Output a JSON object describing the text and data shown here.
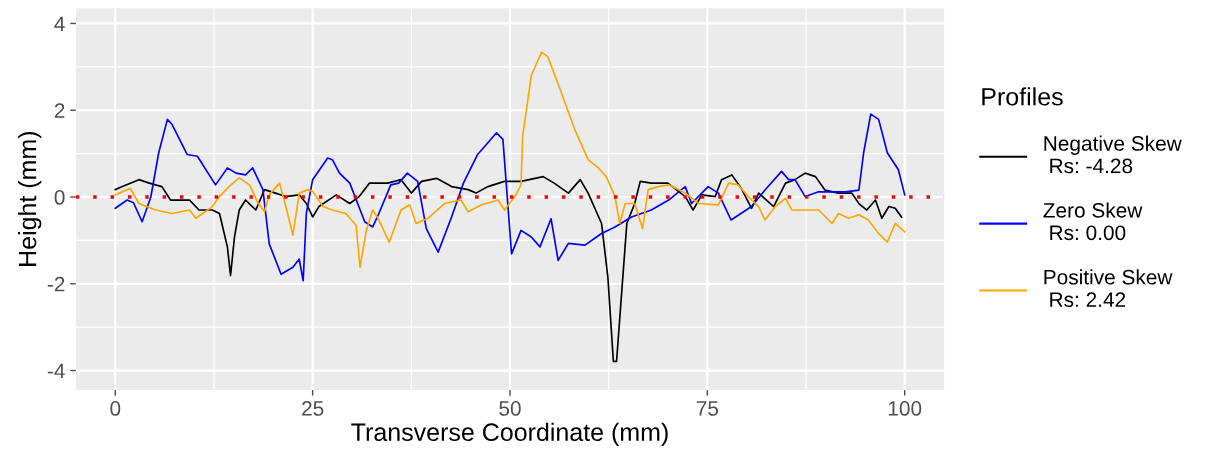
{
  "chart_data": {
    "type": "line",
    "xlabel": "Transverse Coordinate (mm)",
    "ylabel": "Height (mm)",
    "legend_title": "Profiles",
    "legend": "right",
    "grid": true,
    "xlim": [
      -5,
      105
    ],
    "xticks": [
      0,
      25,
      50,
      75,
      100
    ],
    "ylim": [
      -4.45,
      4.35
    ],
    "yticks": [
      -4,
      -2,
      0,
      2,
      4
    ],
    "ref_lines": [
      {
        "axis": "y",
        "value": 0,
        "color": "#ff0000",
        "line_style": "dotted"
      }
    ],
    "series": [
      {
        "name": "Negative Skew\n Rs: -4.28",
        "color": "#000000",
        "x": [
          0,
          0.9,
          3,
          4.3,
          5.9,
          7,
          9.4,
          10.6,
          12.3,
          13.2,
          14.2,
          14.6,
          15.1,
          15.7,
          16.5,
          17.8,
          18.9,
          20.3,
          21.6,
          23.3,
          24.2,
          25,
          25.8,
          28,
          29.7,
          30.9,
          32.2,
          34.5,
          36.2,
          37.5,
          38.8,
          40.7,
          42.6,
          44.7,
          45.7,
          47.2,
          49.3,
          51.4,
          54.2,
          55.6,
          57.4,
          58.9,
          59.9,
          61.6,
          62.4,
          63.1,
          63.5,
          64.1,
          64.8,
          65.8,
          66.5,
          67.9,
          70,
          72.2,
          73.2,
          74.3,
          76,
          76.8,
          78.1,
          79.3,
          80.6,
          81.5,
          83.4,
          84.9,
          86.1,
          87.4,
          88.7,
          89.9,
          91.6,
          93.3,
          94.2,
          95.2,
          96.3,
          97.1,
          98,
          98.8,
          99.6
        ],
        "values": [
          0.17,
          0.24,
          0.4,
          0.32,
          0.24,
          -0.07,
          -0.07,
          -0.3,
          -0.3,
          -0.38,
          -1.15,
          -1.81,
          -0.92,
          -0.3,
          -0.07,
          -0.3,
          0.17,
          0.09,
          0.01,
          0.05,
          -0.15,
          -0.46,
          -0.22,
          0.05,
          -0.15,
          0.01,
          0.32,
          0.32,
          0.4,
          0.09,
          0.36,
          0.43,
          0.24,
          0.17,
          0.09,
          0.24,
          0.36,
          0.36,
          0.47,
          0.32,
          0.09,
          0.4,
          0.09,
          -0.61,
          -1.85,
          -3.79,
          -3.79,
          -2.32,
          -0.61,
          -0.15,
          0.36,
          0.32,
          0.32,
          0.01,
          -0.3,
          0.05,
          0.01,
          0.4,
          0.51,
          0.2,
          -0.26,
          0.09,
          -0.22,
          0.32,
          0.4,
          0.55,
          0.47,
          0.16,
          0.09,
          0.09,
          -0.15,
          -0.3,
          -0.07,
          -0.49,
          -0.22,
          -0.26,
          -0.46
        ]
      },
      {
        "name": "Zero Skew\n Rs: 0.00",
        "color": "#0000ff",
        "x": [
          0,
          1.5,
          2.3,
          3.4,
          4.5,
          5.5,
          6.6,
          7.2,
          9.1,
          10.4,
          12.7,
          14.2,
          15.3,
          16.5,
          17.4,
          18.7,
          19.5,
          21,
          22.5,
          23.3,
          23.8,
          24.2,
          25,
          26.9,
          27.5,
          28.4,
          29.7,
          31.6,
          32.6,
          33.2,
          34.9,
          35.9,
          37,
          38.3,
          39.4,
          40.9,
          42.6,
          44.1,
          45.9,
          48.3,
          49.1,
          50.2,
          51.4,
          52.7,
          53.8,
          55.2,
          56.1,
          57.4,
          59.5,
          61.6,
          63.3,
          65.4,
          67.9,
          70.1,
          72.2,
          73,
          75.1,
          76.4,
          78,
          80.6,
          82.3,
          84.4,
          85.3,
          86.1,
          87.4,
          89.1,
          90.8,
          92.5,
          94.2,
          94.8,
          95.7,
          96.7,
          97.8,
          99.2,
          100
        ],
        "values": [
          -0.26,
          -0.07,
          -0.13,
          -0.57,
          0.0,
          1.02,
          1.79,
          1.67,
          0.98,
          0.94,
          0.28,
          0.67,
          0.55,
          0.51,
          0.67,
          0.17,
          -1.08,
          -1.78,
          -1.62,
          -1.43,
          -1.93,
          -0.38,
          0.4,
          0.9,
          0.86,
          0.55,
          0.32,
          -0.57,
          -0.69,
          -0.46,
          0.28,
          0.32,
          0.55,
          0.36,
          -0.73,
          -1.27,
          -0.46,
          0.32,
          0.98,
          1.48,
          1.33,
          -1.31,
          -0.77,
          -0.92,
          -1.15,
          -0.5,
          -1.46,
          -1.07,
          -1.11,
          -0.84,
          -0.69,
          -0.46,
          -0.3,
          -0.07,
          0.24,
          -0.15,
          0.24,
          0.09,
          -0.53,
          -0.22,
          0.16,
          0.59,
          0.4,
          0.4,
          0.01,
          0.12,
          0.12,
          0.12,
          0.16,
          1.02,
          1.91,
          1.79,
          1.02,
          0.63,
          0.05
        ]
      },
      {
        "name": "Positive Skew\n Rs: 2.42",
        "color": "#ffa500",
        "x": [
          0,
          1.9,
          3,
          5.1,
          7.2,
          9.4,
          10.2,
          12.3,
          13.2,
          14.4,
          15.7,
          17,
          18,
          18.9,
          19.5,
          20.8,
          21.6,
          22.5,
          23.3,
          24.4,
          25,
          26.3,
          27.5,
          29.2,
          30.5,
          31,
          31.8,
          32.6,
          33.2,
          34.7,
          36.2,
          37.3,
          38.1,
          39.6,
          41.7,
          43.8,
          44.7,
          46.4,
          48.5,
          49.3,
          50.6,
          51.4,
          51.6,
          52.7,
          54,
          54.8,
          56.5,
          58.2,
          59.9,
          61.2,
          62.2,
          63.3,
          63.9,
          64.6,
          65.8,
          66.8,
          67.5,
          68.8,
          70.1,
          72.2,
          73.9,
          76.4,
          77.7,
          78.9,
          80.2,
          81.5,
          82.3,
          83.6,
          84.9,
          85.7,
          89.1,
          90.8,
          91.6,
          92.9,
          94.2,
          95.4,
          96.7,
          97.8,
          98.8,
          100
        ],
        "values": [
          0.05,
          0.2,
          -0.15,
          -0.3,
          -0.38,
          -0.3,
          -0.49,
          -0.22,
          0.01,
          0.24,
          0.44,
          0.28,
          -0.11,
          -0.34,
          0.05,
          0.32,
          -0.22,
          -0.88,
          0.09,
          0.17,
          0.13,
          -0.22,
          -0.3,
          -0.38,
          -0.65,
          -1.62,
          -0.77,
          -0.3,
          -0.46,
          -1.04,
          -0.3,
          -0.18,
          -0.61,
          -0.49,
          -0.15,
          -0.07,
          -0.34,
          -0.18,
          -0.07,
          -0.3,
          0.01,
          0.28,
          1.4,
          2.8,
          3.34,
          3.23,
          2.41,
          1.56,
          0.86,
          0.67,
          0.47,
          0.01,
          -0.61,
          -0.15,
          -0.15,
          -0.73,
          0.17,
          0.24,
          0.28,
          0.09,
          -0.15,
          -0.18,
          0.32,
          0.28,
          0.01,
          -0.22,
          -0.53,
          -0.22,
          -0.03,
          -0.3,
          -0.3,
          -0.61,
          -0.38,
          -0.49,
          -0.41,
          -0.53,
          -0.84,
          -1.04,
          -0.61,
          -0.8
        ]
      }
    ]
  }
}
